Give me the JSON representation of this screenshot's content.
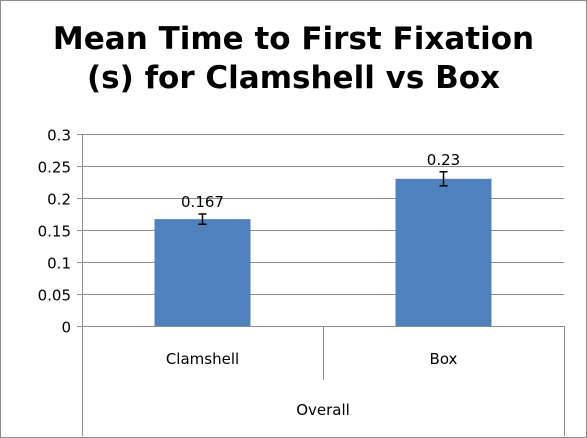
{
  "chart_data": {
    "type": "bar",
    "title_lines": [
      "Mean Time to First Fixation",
      "(s) for Clamshell vs Box"
    ],
    "categories": [
      "Clamshell",
      "Box"
    ],
    "group_label": "Overall",
    "values": [
      0.167,
      0.23
    ],
    "data_labels": [
      "0.167",
      "0.23"
    ],
    "error": [
      0.008,
      0.011
    ],
    "ylim": [
      0,
      0.3
    ],
    "yticks": [
      0,
      0.05,
      0.1,
      0.15,
      0.2,
      0.25,
      0.3
    ],
    "ytick_labels": [
      "0",
      "0.05",
      "0.1",
      "0.15",
      "0.2",
      "0.25",
      "0.3"
    ],
    "grid": true,
    "legend": "none",
    "bar_color": "#4f81bd"
  }
}
